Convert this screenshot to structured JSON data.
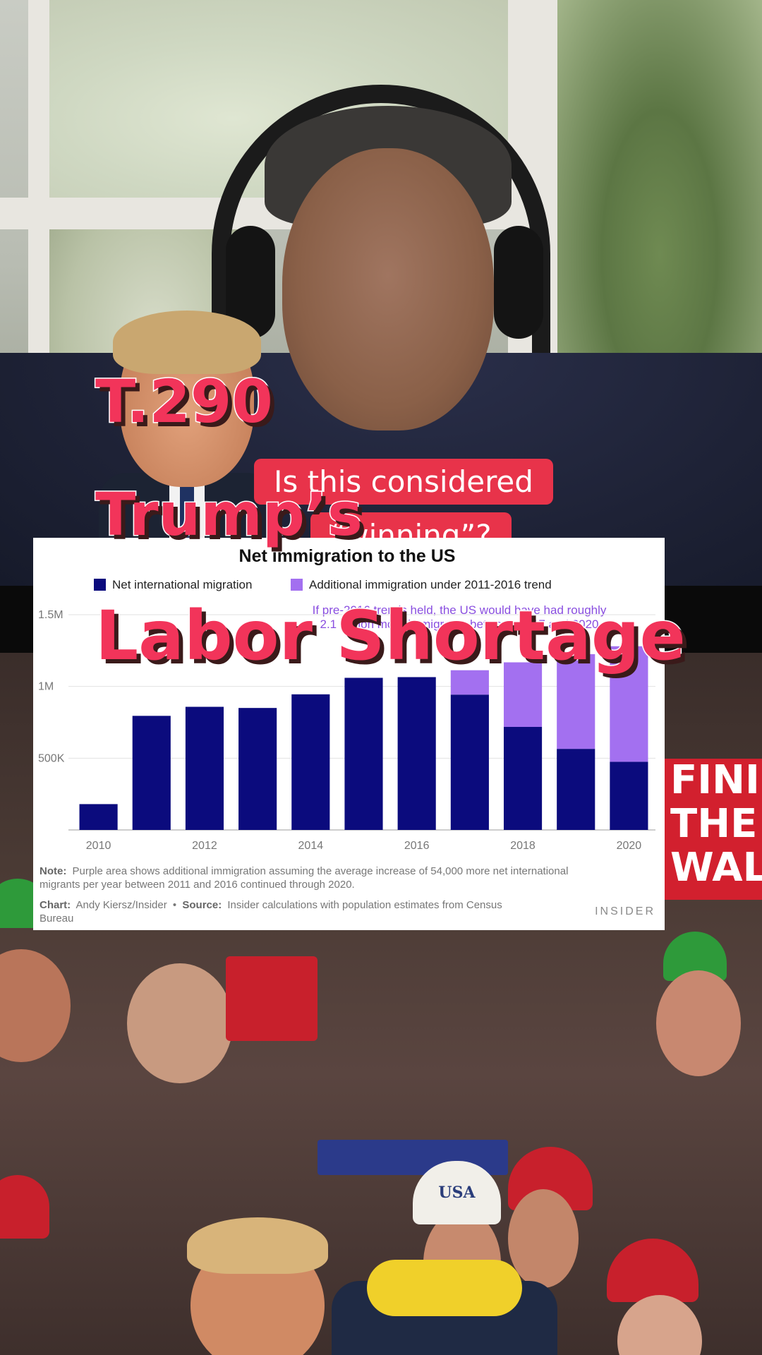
{
  "video": {
    "caption_line1": "Is this considered",
    "caption_line2": "“winning”?"
  },
  "overlay": {
    "title_line1": "T.290",
    "title_line2": "Trump’s",
    "title_line3": "Labor Shortage"
  },
  "background": {
    "sign_text": "FINISH THE WALL",
    "hat_text": "USA"
  },
  "colors": {
    "title_red": "#f2345a",
    "caption_red": "#e8334a",
    "navy": "#0b0b7d",
    "purple": "#a370f0"
  },
  "chart_data": {
    "type": "bar",
    "stacked": true,
    "title": "Net immigration to the US",
    "categories": [
      "2010",
      "2011",
      "2012",
      "2013",
      "2014",
      "2015",
      "2016",
      "2017",
      "2018",
      "2019",
      "2020"
    ],
    "series": [
      {
        "name": "Net international migration",
        "color": "#0b0b7d",
        "values": [
          180000,
          795000,
          858000,
          850000,
          945000,
          1060000,
          1065000,
          943000,
          718000,
          565000,
          475000
        ]
      },
      {
        "name": "Additional immigration under 2011-2016 trend",
        "color": "#a370f0",
        "values": [
          0,
          0,
          0,
          0,
          0,
          0,
          0,
          170000,
          450000,
          660000,
          805000
        ]
      }
    ],
    "x_tick_labels": [
      "2010",
      "",
      "2012",
      "",
      "2014",
      "",
      "2016",
      "",
      "2018",
      "",
      "2020"
    ],
    "y_ticks": [
      500000,
      1000000,
      1500000
    ],
    "y_tick_labels": [
      "500K",
      "1M",
      "1.5M"
    ],
    "ylim": [
      0,
      1500000
    ],
    "grid": true,
    "legend": "top",
    "annotation": {
      "line1": "If pre-2016 trends held, the US would have had roughly",
      "line2": "2.1 million more immigrants between 2017 and 2020",
      "arrow_symbol": "↓",
      "target_index": 7
    },
    "note_label": "Note:",
    "note_line1": "Purple area shows additional immigration assuming the average increase of 54,000 more net international",
    "note_line2": "migrants per year between 2011 and 2016 continued through 2020.",
    "chart_label": "Chart:",
    "chart_credit": "Andy Kiersz/Insider",
    "bullet": "•",
    "source_label": "Source:",
    "source_line1": "Insider calculations with population estimates from Census",
    "source_line2": "Bureau",
    "brand": "INSIDER"
  }
}
